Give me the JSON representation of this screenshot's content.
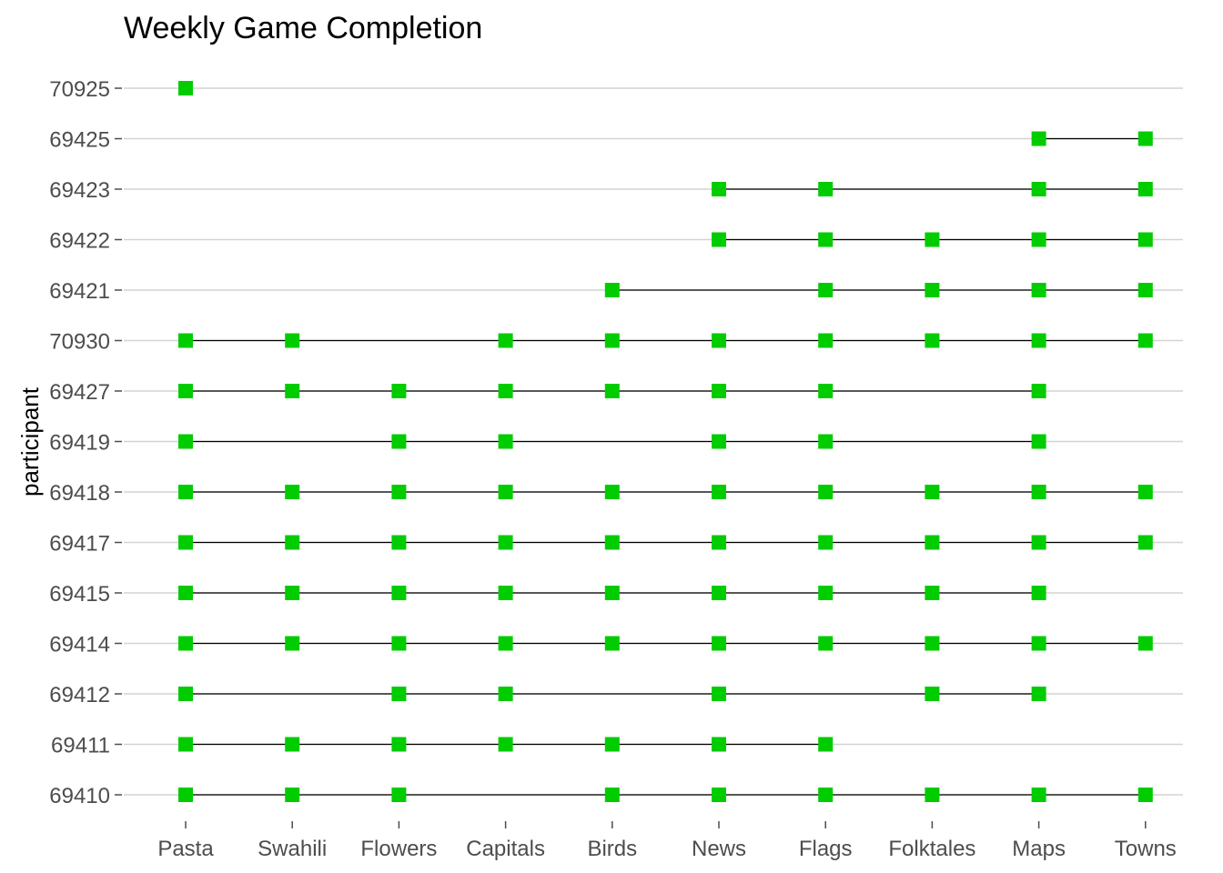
{
  "chart_data": {
    "type": "scatter",
    "title": "Weekly Game Completion",
    "xlabel": "",
    "ylabel": "participant",
    "categories": [
      "Pasta",
      "Swahili",
      "Flowers",
      "Capitals",
      "Birds",
      "News",
      "Flags",
      "Folktales",
      "Maps",
      "Towns"
    ],
    "participants": [
      "70925",
      "69425",
      "69423",
      "69422",
      "69421",
      "70930",
      "69427",
      "69419",
      "69418",
      "69417",
      "69415",
      "69414",
      "69412",
      "69411",
      "69410"
    ],
    "completions": [
      {
        "participant": "70925",
        "games": [
          "Pasta"
        ]
      },
      {
        "participant": "69425",
        "games": [
          "Maps",
          "Towns"
        ]
      },
      {
        "participant": "69423",
        "games": [
          "News",
          "Flags",
          "Maps",
          "Towns"
        ]
      },
      {
        "participant": "69422",
        "games": [
          "News",
          "Flags",
          "Folktales",
          "Maps",
          "Towns"
        ]
      },
      {
        "participant": "69421",
        "games": [
          "Birds",
          "Flags",
          "Folktales",
          "Maps",
          "Towns"
        ]
      },
      {
        "participant": "70930",
        "games": [
          "Pasta",
          "Swahili",
          "Capitals",
          "Birds",
          "News",
          "Flags",
          "Folktales",
          "Maps",
          "Towns"
        ]
      },
      {
        "participant": "69427",
        "games": [
          "Pasta",
          "Swahili",
          "Flowers",
          "Capitals",
          "Birds",
          "News",
          "Flags",
          "Maps"
        ]
      },
      {
        "participant": "69419",
        "games": [
          "Pasta",
          "Flowers",
          "Capitals",
          "News",
          "Flags",
          "Maps"
        ]
      },
      {
        "participant": "69418",
        "games": [
          "Pasta",
          "Swahili",
          "Flowers",
          "Capitals",
          "Birds",
          "News",
          "Flags",
          "Folktales",
          "Maps",
          "Towns"
        ]
      },
      {
        "participant": "69417",
        "games": [
          "Pasta",
          "Swahili",
          "Flowers",
          "Capitals",
          "Birds",
          "News",
          "Flags",
          "Folktales",
          "Maps",
          "Towns"
        ]
      },
      {
        "participant": "69415",
        "games": [
          "Pasta",
          "Swahili",
          "Flowers",
          "Capitals",
          "Birds",
          "News",
          "Flags",
          "Folktales",
          "Maps"
        ]
      },
      {
        "participant": "69414",
        "games": [
          "Pasta",
          "Swahili",
          "Flowers",
          "Capitals",
          "Birds",
          "News",
          "Flags",
          "Folktales",
          "Maps",
          "Towns"
        ]
      },
      {
        "participant": "69412",
        "games": [
          "Pasta",
          "Flowers",
          "Capitals",
          "News",
          "Folktales",
          "Maps"
        ]
      },
      {
        "participant": "69411",
        "games": [
          "Pasta",
          "Swahili",
          "Flowers",
          "Capitals",
          "Birds",
          "News",
          "Flags"
        ]
      },
      {
        "participant": "69410",
        "games": [
          "Pasta",
          "Swahili",
          "Flowers",
          "Birds",
          "News",
          "Flags",
          "Folktales",
          "Maps",
          "Towns"
        ]
      }
    ],
    "grid": true,
    "legend": "none",
    "colors": {
      "marker": "#00cc00",
      "line": "#000000",
      "grid": "#d3d3d3",
      "axis_text": "#4d4d4d",
      "title": "#000000"
    }
  }
}
